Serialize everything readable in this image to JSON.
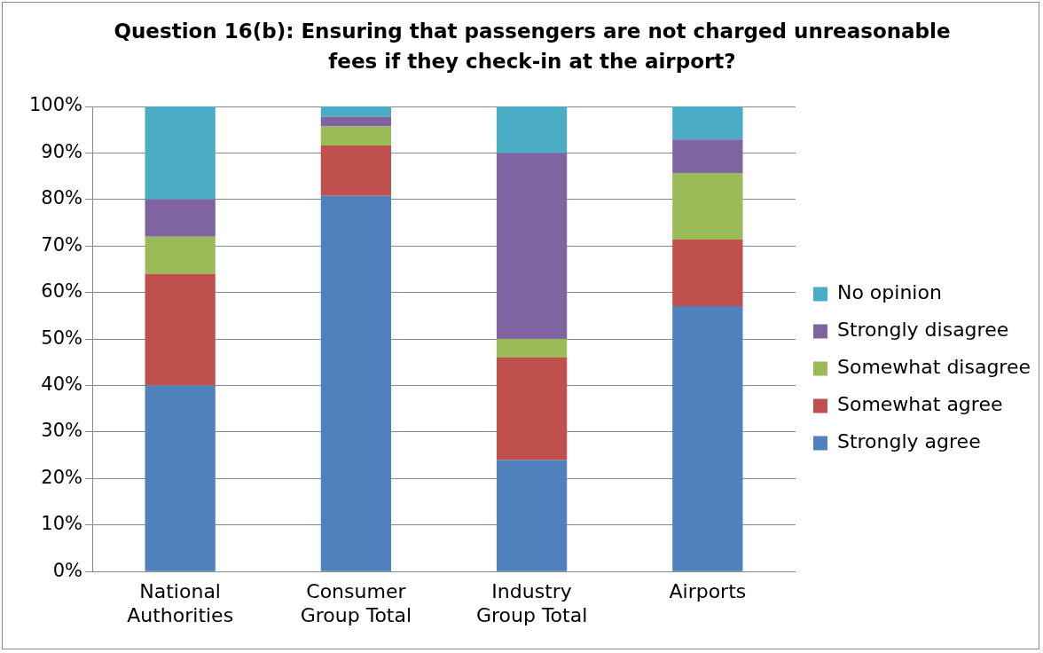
{
  "chart_data": {
    "type": "bar",
    "title": "Question 16(b): Ensuring that passengers are not charged unreasonable fees if they check-in at the airport?",
    "categories": [
      "National Authorities",
      "Consumer Group Total",
      "Industry Group Total",
      "Airports"
    ],
    "stacked": true,
    "series": [
      {
        "name": "Strongly agree",
        "color": "#4f81bd",
        "values": [
          40,
          80.8,
          24,
          57.1
        ]
      },
      {
        "name": "Somewhat agree",
        "color": "#c0504d",
        "values": [
          24,
          10.8,
          22,
          14.3
        ]
      },
      {
        "name": "Somewhat disagree",
        "color": "#9bbb59",
        "values": [
          8,
          4.1,
          4,
          14.3
        ]
      },
      {
        "name": "Strongly disagree",
        "color": "#8064a2",
        "values": [
          8,
          2.1,
          40,
          7.2
        ]
      },
      {
        "name": "No opinion",
        "color": "#4bacc6",
        "values": [
          20,
          2.2,
          10,
          7.1
        ]
      }
    ],
    "ylim": [
      0,
      100
    ],
    "yticks": [
      {
        "value": 0,
        "label": "0%"
      },
      {
        "value": 10,
        "label": "10%"
      },
      {
        "value": 20,
        "label": "20%"
      },
      {
        "value": 30,
        "label": "30%"
      },
      {
        "value": 40,
        "label": "40%"
      },
      {
        "value": 50,
        "label": "50%"
      },
      {
        "value": 60,
        "label": "60%"
      },
      {
        "value": 70,
        "label": "70%"
      },
      {
        "value": 80,
        "label": "80%"
      },
      {
        "value": 90,
        "label": "90%"
      },
      {
        "value": 100,
        "label": "100%"
      }
    ],
    "grid": "y",
    "legend": "right"
  }
}
